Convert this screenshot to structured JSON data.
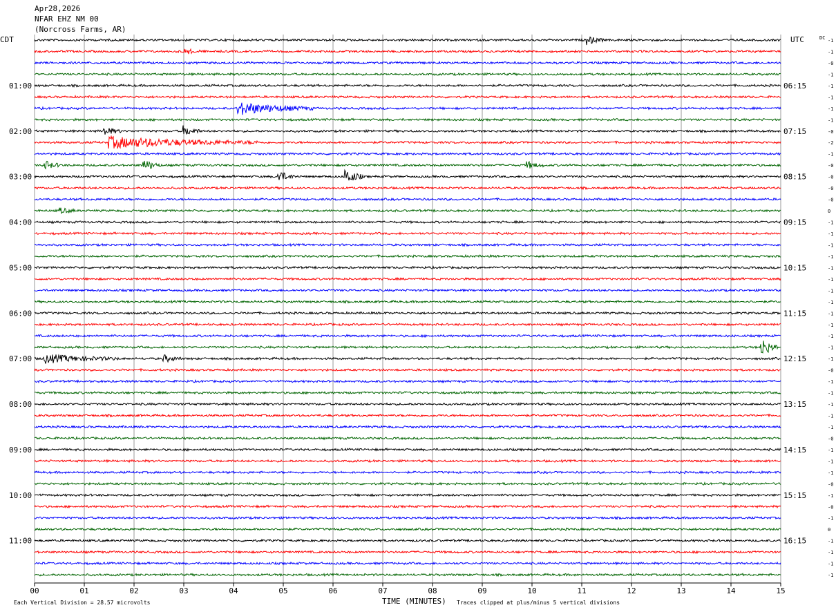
{
  "header": {
    "date": "Apr28,2026",
    "station": "NFAR EHZ NM 00",
    "location": "(Norcross Farms, AR)"
  },
  "left_tz": "CDT",
  "right_tz": "UTC",
  "dc_label": "DC",
  "footer": {
    "left": "Each Vertical Division =   28.57 microvolts",
    "center": "TIME (MINUTES)",
    "right": "Traces clipped at plus/minus 5 vertical divisions"
  },
  "chart_data": {
    "type": "line",
    "title": "",
    "xlabel": "TIME (MINUTES)",
    "xlim": [
      0,
      15
    ],
    "x_ticks": [
      "00",
      "01",
      "02",
      "03",
      "04",
      "05",
      "06",
      "07",
      "08",
      "09",
      "10",
      "11",
      "12",
      "13",
      "14",
      "15"
    ],
    "trace_colors": [
      "#000000",
      "#ff0000",
      "#0000ff",
      "#006400"
    ],
    "left_hour_labels": [
      {
        "trace": 4,
        "label": "01:00"
      },
      {
        "trace": 8,
        "label": "02:00"
      },
      {
        "trace": 12,
        "label": "03:00"
      },
      {
        "trace": 16,
        "label": "04:00"
      },
      {
        "trace": 20,
        "label": "05:00"
      },
      {
        "trace": 24,
        "label": "06:00"
      },
      {
        "trace": 28,
        "label": "07:00"
      },
      {
        "trace": 32,
        "label": "08:00"
      },
      {
        "trace": 36,
        "label": "09:00"
      },
      {
        "trace": 40,
        "label": "10:00"
      },
      {
        "trace": 44,
        "label": "11:00"
      }
    ],
    "right_hour_labels": [
      {
        "trace": 4,
        "label": "06:15"
      },
      {
        "trace": 8,
        "label": "07:15"
      },
      {
        "trace": 12,
        "label": "08:15"
      },
      {
        "trace": 16,
        "label": "09:15"
      },
      {
        "trace": 20,
        "label": "10:15"
      },
      {
        "trace": 24,
        "label": "11:15"
      },
      {
        "trace": 28,
        "label": "12:15"
      },
      {
        "trace": 32,
        "label": "13:15"
      },
      {
        "trace": 36,
        "label": "14:15"
      },
      {
        "trace": 40,
        "label": "15:15"
      },
      {
        "trace": 44,
        "label": "16:15"
      }
    ],
    "dc_offsets": [
      "-1",
      "-1",
      "-0",
      "-1",
      "-1",
      "-1",
      "-1",
      "-1",
      "-0",
      "-2",
      "-1",
      "-0",
      "-0",
      "-0",
      "-0",
      "0",
      "-1",
      "-1",
      "-1",
      "-1",
      "-1",
      "-1",
      "-1",
      "-1",
      "-1",
      "-1",
      "-1",
      "-1",
      "-1",
      "-0",
      "-1",
      "-1",
      "-1",
      "-1",
      "-1",
      "-0",
      "-1",
      "-1",
      "-1",
      "-0",
      "-1",
      "-0",
      "-1",
      "0",
      "-1",
      "-1",
      "-1",
      "-1"
    ],
    "events": [
      {
        "trace": 0,
        "minute": 11.1,
        "amp": 6
      },
      {
        "trace": 1,
        "minute": 3.0,
        "amp": 4
      },
      {
        "trace": 6,
        "minute": 4.1,
        "amp": 9,
        "dur": 1.5
      },
      {
        "trace": 8,
        "minute": 1.4,
        "amp": 6
      },
      {
        "trace": 8,
        "minute": 3.0,
        "amp": 7
      },
      {
        "trace": 9,
        "minute": 1.5,
        "amp": 8,
        "dur": 3.0
      },
      {
        "trace": 11,
        "minute": 0.2,
        "amp": 6
      },
      {
        "trace": 11,
        "minute": 2.2,
        "amp": 8
      },
      {
        "trace": 11,
        "minute": 9.9,
        "amp": 5
      },
      {
        "trace": 12,
        "minute": 4.9,
        "amp": 8
      },
      {
        "trace": 12,
        "minute": 6.25,
        "amp": 12
      },
      {
        "trace": 15,
        "minute": 0.5,
        "amp": 4
      },
      {
        "trace": 27,
        "minute": 14.6,
        "amp": 14
      },
      {
        "trace": 28,
        "minute": 0.2,
        "amp": 6,
        "dur": 1.5
      },
      {
        "trace": 28,
        "minute": 2.6,
        "amp": 5
      }
    ]
  }
}
